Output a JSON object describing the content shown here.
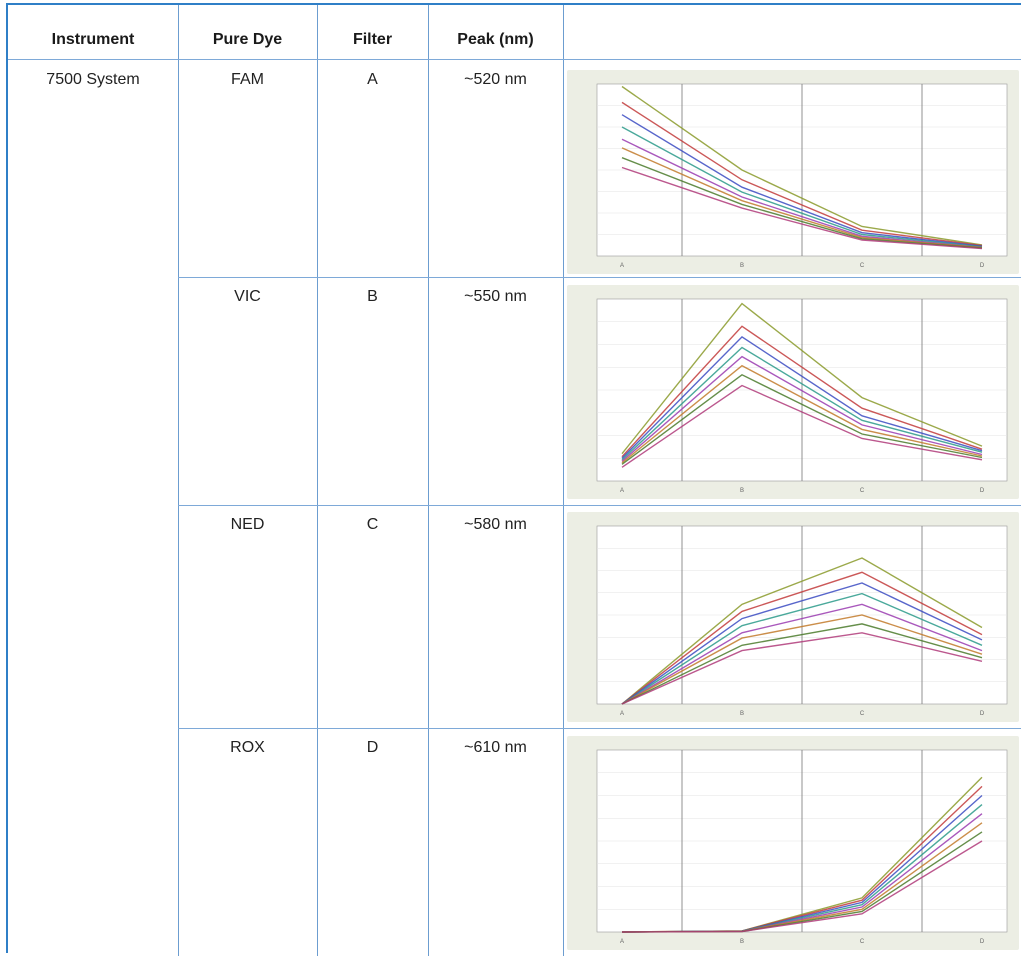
{
  "table": {
    "headers": {
      "instrument": "Instrument",
      "pure_dye": "Pure Dye",
      "filter": "Filter",
      "peak": "Peak (nm)"
    },
    "instrument": "7500 System",
    "rows": [
      {
        "dye": "FAM",
        "filter": "A",
        "peak": "~520 nm"
      },
      {
        "dye": "VIC",
        "filter": "B",
        "peak": "~550 nm"
      },
      {
        "dye": "NED",
        "filter": "C",
        "peak": "~580 nm"
      },
      {
        "dye": "ROX",
        "filter": "D",
        "peak": "~610 nm"
      }
    ]
  },
  "colors": {
    "border": "#2f7fc7",
    "grid_line": "#7ea9d8",
    "chart_bg": "#eceee4"
  },
  "chart_data": [
    {
      "type": "line",
      "panel_of": "FAM",
      "categories": [
        "A",
        "B",
        "C",
        "D"
      ],
      "ylim": [
        0,
        1400000
      ],
      "series": [
        {
          "values": [
            1380000,
            700000,
            240000,
            90000
          ]
        },
        {
          "values": [
            1250000,
            620000,
            210000,
            85000
          ]
        },
        {
          "values": [
            1150000,
            560000,
            190000,
            80000
          ]
        },
        {
          "values": [
            1050000,
            520000,
            175000,
            75000
          ]
        },
        {
          "values": [
            950000,
            480000,
            160000,
            70000
          ]
        },
        {
          "values": [
            880000,
            450000,
            150000,
            68000
          ]
        },
        {
          "values": [
            800000,
            420000,
            140000,
            64000
          ]
        },
        {
          "values": [
            720000,
            390000,
            130000,
            60000
          ]
        }
      ]
    },
    {
      "type": "line",
      "panel_of": "VIC",
      "categories": [
        "A",
        "B",
        "C",
        "D"
      ],
      "ylim": [
        0,
        1200000
      ],
      "series": [
        {
          "values": [
            180000,
            1170000,
            550000,
            230000
          ]
        },
        {
          "values": [
            160000,
            1020000,
            480000,
            210000
          ]
        },
        {
          "values": [
            150000,
            950000,
            430000,
            200000
          ]
        },
        {
          "values": [
            140000,
            880000,
            400000,
            190000
          ]
        },
        {
          "values": [
            130000,
            820000,
            370000,
            175000
          ]
        },
        {
          "values": [
            120000,
            760000,
            340000,
            165000
          ]
        },
        {
          "values": [
            110000,
            700000,
            310000,
            155000
          ]
        },
        {
          "values": [
            90000,
            630000,
            280000,
            140000
          ]
        }
      ]
    },
    {
      "type": "line",
      "panel_of": "NED",
      "categories": [
        "A",
        "B",
        "C",
        "D"
      ],
      "ylim": [
        0,
        1000000
      ],
      "series": [
        {
          "values": [
            0,
            560000,
            820000,
            430000
          ]
        },
        {
          "values": [
            0,
            520000,
            740000,
            390000
          ]
        },
        {
          "values": [
            0,
            480000,
            680000,
            360000
          ]
        },
        {
          "values": [
            0,
            440000,
            620000,
            330000
          ]
        },
        {
          "values": [
            0,
            400000,
            560000,
            300000
          ]
        },
        {
          "values": [
            0,
            370000,
            500000,
            280000
          ]
        },
        {
          "values": [
            0,
            330000,
            450000,
            260000
          ]
        },
        {
          "values": [
            0,
            300000,
            400000,
            240000
          ]
        }
      ]
    },
    {
      "type": "line",
      "panel_of": "ROX",
      "categories": [
        "A",
        "B",
        "C",
        "D"
      ],
      "ylim": [
        0,
        800000
      ],
      "series": [
        {
          "values": [
            0,
            5000,
            150000,
            680000
          ]
        },
        {
          "values": [
            0,
            5000,
            140000,
            640000
          ]
        },
        {
          "values": [
            0,
            4000,
            130000,
            600000
          ]
        },
        {
          "values": [
            0,
            4000,
            120000,
            560000
          ]
        },
        {
          "values": [
            0,
            3000,
            110000,
            520000
          ]
        },
        {
          "values": [
            0,
            3000,
            100000,
            480000
          ]
        },
        {
          "values": [
            0,
            2000,
            90000,
            440000
          ]
        },
        {
          "values": [
            0,
            2000,
            80000,
            400000
          ]
        }
      ]
    }
  ]
}
